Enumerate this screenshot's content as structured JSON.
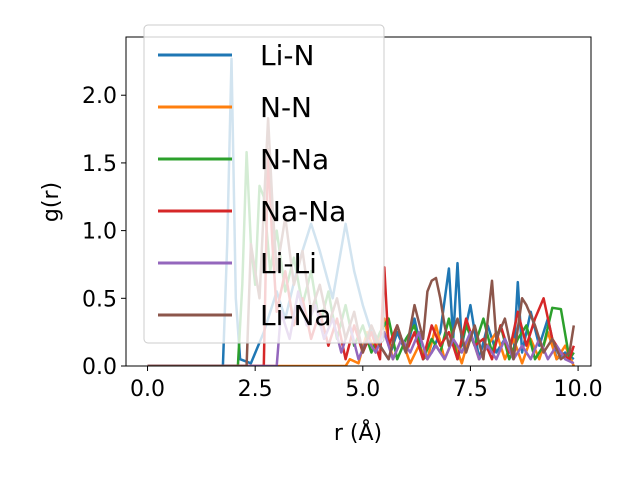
{
  "chart_data": {
    "type": "line",
    "xlabel": "r (Å)",
    "ylabel": "g(r)",
    "xlim": [
      -0.5,
      10.3
    ],
    "ylim": [
      0.0,
      2.43
    ],
    "xticks": [
      "0.0",
      "2.5",
      "5.0",
      "7.5",
      "10.0"
    ],
    "xtick_values": [
      0.0,
      2.5,
      5.0,
      7.5,
      10.0
    ],
    "yticks": [
      "0.0",
      "0.5",
      "1.0",
      "1.5",
      "2.0"
    ],
    "ytick_values": [
      0.0,
      0.5,
      1.0,
      1.5,
      2.0
    ],
    "grid": false,
    "legend_position": "upper-left",
    "series": [
      {
        "name": "Li-N",
        "color": "#1f77b4",
        "points": [
          [
            0,
            0
          ],
          [
            1.6,
            0
          ],
          [
            1.75,
            0
          ],
          [
            1.85,
            0.9
          ],
          [
            1.95,
            2.27
          ],
          [
            2.05,
            0.5
          ],
          [
            2.15,
            0.05
          ],
          [
            2.4,
            0.02
          ],
          [
            2.7,
            0.25
          ],
          [
            3.0,
            0.55
          ],
          [
            3.2,
            0.35
          ],
          [
            3.5,
            0.75
          ],
          [
            3.8,
            1.05
          ],
          [
            4.0,
            0.85
          ],
          [
            4.3,
            0.5
          ],
          [
            4.6,
            1.05
          ],
          [
            4.8,
            0.7
          ],
          [
            5.0,
            0.45
          ],
          [
            5.2,
            0.25
          ],
          [
            5.4,
            0.15
          ],
          [
            5.6,
            0.05
          ],
          [
            5.8,
            0.25
          ],
          [
            6.0,
            0.1
          ],
          [
            6.2,
            0.35
          ],
          [
            6.4,
            0.05
          ],
          [
            6.6,
            0.1
          ],
          [
            6.8,
            0.25
          ],
          [
            7.0,
            0.72
          ],
          [
            7.1,
            0.2
          ],
          [
            7.2,
            0.76
          ],
          [
            7.3,
            0.15
          ],
          [
            7.5,
            0.45
          ],
          [
            7.7,
            0.05
          ],
          [
            7.9,
            0.3
          ],
          [
            8.1,
            0.1
          ],
          [
            8.3,
            0.2
          ],
          [
            8.5,
            0.05
          ],
          [
            8.6,
            0.62
          ],
          [
            8.7,
            0.1
          ],
          [
            8.9,
            0.4
          ],
          [
            9.1,
            0.15
          ],
          [
            9.3,
            0.35
          ],
          [
            9.5,
            0.05
          ],
          [
            9.7,
            0.1
          ],
          [
            9.9,
            0.05
          ]
        ]
      },
      {
        "name": "N-N",
        "color": "#ff7f0e",
        "points": [
          [
            0,
            0
          ],
          [
            4.6,
            0
          ],
          [
            4.7,
            0.05
          ],
          [
            4.9,
            0.02
          ],
          [
            5.1,
            0.25
          ],
          [
            5.3,
            0.1
          ],
          [
            5.5,
            0.35
          ],
          [
            5.7,
            0.05
          ],
          [
            5.9,
            0.2
          ],
          [
            6.1,
            0.02
          ],
          [
            6.3,
            0.15
          ],
          [
            6.5,
            0.05
          ],
          [
            6.7,
            0.3
          ],
          [
            6.9,
            0.05
          ],
          [
            7.1,
            0.2
          ],
          [
            7.3,
            0.02
          ],
          [
            7.5,
            0.25
          ],
          [
            7.7,
            0.05
          ],
          [
            7.9,
            0.15
          ],
          [
            8.1,
            0.25
          ],
          [
            8.3,
            0.05
          ],
          [
            8.5,
            0.2
          ],
          [
            8.7,
            0.02
          ],
          [
            8.9,
            0.2
          ],
          [
            9.1,
            0.05
          ],
          [
            9.3,
            0.25
          ],
          [
            9.5,
            0.05
          ],
          [
            9.7,
            0.15
          ],
          [
            9.9,
            0.0
          ]
        ]
      },
      {
        "name": "N-Na",
        "color": "#2ca02c",
        "points": [
          [
            0,
            0
          ],
          [
            2.1,
            0
          ],
          [
            2.2,
            0.6
          ],
          [
            2.3,
            1.58
          ],
          [
            2.4,
            0.9
          ],
          [
            2.5,
            0.6
          ],
          [
            2.6,
            1.33
          ],
          [
            2.7,
            1.25
          ],
          [
            2.85,
            0.7
          ],
          [
            3.0,
            1.0
          ],
          [
            3.2,
            0.55
          ],
          [
            3.4,
            0.8
          ],
          [
            3.6,
            0.45
          ],
          [
            3.8,
            0.7
          ],
          [
            4.0,
            0.3
          ],
          [
            4.2,
            0.55
          ],
          [
            4.4,
            0.2
          ],
          [
            4.6,
            0.45
          ],
          [
            4.8,
            0.15
          ],
          [
            5.0,
            0.3
          ],
          [
            5.2,
            0.1
          ],
          [
            5.4,
            0.25
          ],
          [
            5.6,
            0.35
          ],
          [
            5.8,
            0.05
          ],
          [
            6.0,
            0.2
          ],
          [
            6.2,
            0.3
          ],
          [
            6.4,
            0.05
          ],
          [
            6.6,
            0.2
          ],
          [
            6.8,
            0.1
          ],
          [
            7.0,
            0.35
          ],
          [
            7.2,
            0.05
          ],
          [
            7.4,
            0.3
          ],
          [
            7.6,
            0.15
          ],
          [
            7.8,
            0.35
          ],
          [
            8.0,
            0.1
          ],
          [
            8.2,
            0.3
          ],
          [
            8.4,
            0.05
          ],
          [
            8.6,
            0.2
          ],
          [
            8.8,
            0.3
          ],
          [
            9.0,
            0.05
          ],
          [
            9.2,
            0.15
          ],
          [
            9.4,
            0.43
          ],
          [
            9.6,
            0.42
          ],
          [
            9.8,
            0.05
          ],
          [
            9.9,
            0.1
          ]
        ]
      },
      {
        "name": "Na-Na",
        "color": "#d62728",
        "points": [
          [
            0,
            0
          ],
          [
            2.7,
            0
          ],
          [
            2.8,
            1.6
          ],
          [
            2.9,
            0.9
          ],
          [
            3.0,
            0.4
          ],
          [
            3.2,
            0.7
          ],
          [
            3.4,
            0.3
          ],
          [
            3.6,
            0.5
          ],
          [
            3.8,
            0.2
          ],
          [
            4.0,
            0.4
          ],
          [
            4.2,
            0.15
          ],
          [
            4.4,
            0.35
          ],
          [
            4.6,
            0.05
          ],
          [
            4.8,
            0.3
          ],
          [
            5.0,
            0.1
          ],
          [
            5.2,
            0.25
          ],
          [
            5.4,
            0.05
          ],
          [
            5.5,
            0.73
          ],
          [
            5.6,
            0.15
          ],
          [
            5.8,
            0.3
          ],
          [
            6.0,
            0.1
          ],
          [
            6.2,
            0.25
          ],
          [
            6.4,
            0.05
          ],
          [
            6.6,
            0.3
          ],
          [
            6.8,
            0.15
          ],
          [
            7.0,
            0.25
          ],
          [
            7.2,
            0.05
          ],
          [
            7.4,
            0.35
          ],
          [
            7.6,
            0.15
          ],
          [
            7.8,
            0.2
          ],
          [
            8.0,
            0.05
          ],
          [
            8.2,
            0.3
          ],
          [
            8.4,
            0.1
          ],
          [
            8.6,
            0.4
          ],
          [
            8.8,
            0.15
          ],
          [
            9.0,
            0.35
          ],
          [
            9.2,
            0.5
          ],
          [
            9.4,
            0.2
          ],
          [
            9.6,
            0.1
          ],
          [
            9.8,
            0.05
          ],
          [
            9.9,
            0.15
          ]
        ]
      },
      {
        "name": "Li-Li",
        "color": "#9467bd",
        "points": [
          [
            0,
            0
          ],
          [
            3.0,
            0
          ],
          [
            3.1,
            0.4
          ],
          [
            3.3,
            0.2
          ],
          [
            3.5,
            0.55
          ],
          [
            3.7,
            0.3
          ],
          [
            3.9,
            0.45
          ],
          [
            4.1,
            0.2
          ],
          [
            4.3,
            0.35
          ],
          [
            4.5,
            0.1
          ],
          [
            4.7,
            0.3
          ],
          [
            4.9,
            0.05
          ],
          [
            5.1,
            0.2
          ],
          [
            5.3,
            0.1
          ],
          [
            5.5,
            0.25
          ],
          [
            5.7,
            0.05
          ],
          [
            5.9,
            0.2
          ],
          [
            6.1,
            0.1
          ],
          [
            6.3,
            0.25
          ],
          [
            6.5,
            0.05
          ],
          [
            6.7,
            0.15
          ],
          [
            6.9,
            0.05
          ],
          [
            7.1,
            0.2
          ],
          [
            7.3,
            0.1
          ],
          [
            7.5,
            0.25
          ],
          [
            7.7,
            0.05
          ],
          [
            7.9,
            0.15
          ],
          [
            8.1,
            0.05
          ],
          [
            8.3,
            0.2
          ],
          [
            8.5,
            0.05
          ],
          [
            8.7,
            0.15
          ],
          [
            8.9,
            0.05
          ],
          [
            9.1,
            0.2
          ],
          [
            9.3,
            0.05
          ],
          [
            9.5,
            0.15
          ],
          [
            9.7,
            0.05
          ],
          [
            9.9,
            0.02
          ]
        ]
      },
      {
        "name": "Li-Na",
        "color": "#8c564b",
        "points": [
          [
            0,
            0
          ],
          [
            2.3,
            0
          ],
          [
            2.4,
            0.9
          ],
          [
            2.6,
            0.5
          ],
          [
            2.8,
            1.83
          ],
          [
            2.9,
            1.2
          ],
          [
            3.0,
            0.7
          ],
          [
            3.2,
            1.1
          ],
          [
            3.4,
            0.6
          ],
          [
            3.6,
            0.85
          ],
          [
            3.8,
            0.4
          ],
          [
            4.0,
            0.6
          ],
          [
            4.2,
            0.3
          ],
          [
            4.4,
            0.5
          ],
          [
            4.6,
            0.2
          ],
          [
            4.8,
            0.4
          ],
          [
            5.0,
            0.1
          ],
          [
            5.2,
            0.3
          ],
          [
            5.4,
            0.15
          ],
          [
            5.6,
            0.05
          ],
          [
            5.8,
            0.3
          ],
          [
            6.0,
            0.1
          ],
          [
            6.2,
            0.45
          ],
          [
            6.4,
            0.2
          ],
          [
            6.5,
            0.55
          ],
          [
            6.6,
            0.63
          ],
          [
            6.7,
            0.65
          ],
          [
            6.8,
            0.5
          ],
          [
            6.9,
            0.3
          ],
          [
            7.0,
            0.15
          ],
          [
            7.2,
            0.35
          ],
          [
            7.4,
            0.1
          ],
          [
            7.6,
            0.3
          ],
          [
            7.8,
            0.05
          ],
          [
            8.0,
            0.63
          ],
          [
            8.1,
            0.2
          ],
          [
            8.3,
            0.35
          ],
          [
            8.5,
            0.05
          ],
          [
            8.7,
            0.5
          ],
          [
            8.8,
            0.45
          ],
          [
            9.0,
            0.3
          ],
          [
            9.2,
            0.1
          ],
          [
            9.4,
            0.2
          ],
          [
            9.6,
            0.05
          ],
          [
            9.8,
            0.1
          ],
          [
            9.9,
            0.3
          ]
        ]
      }
    ]
  }
}
